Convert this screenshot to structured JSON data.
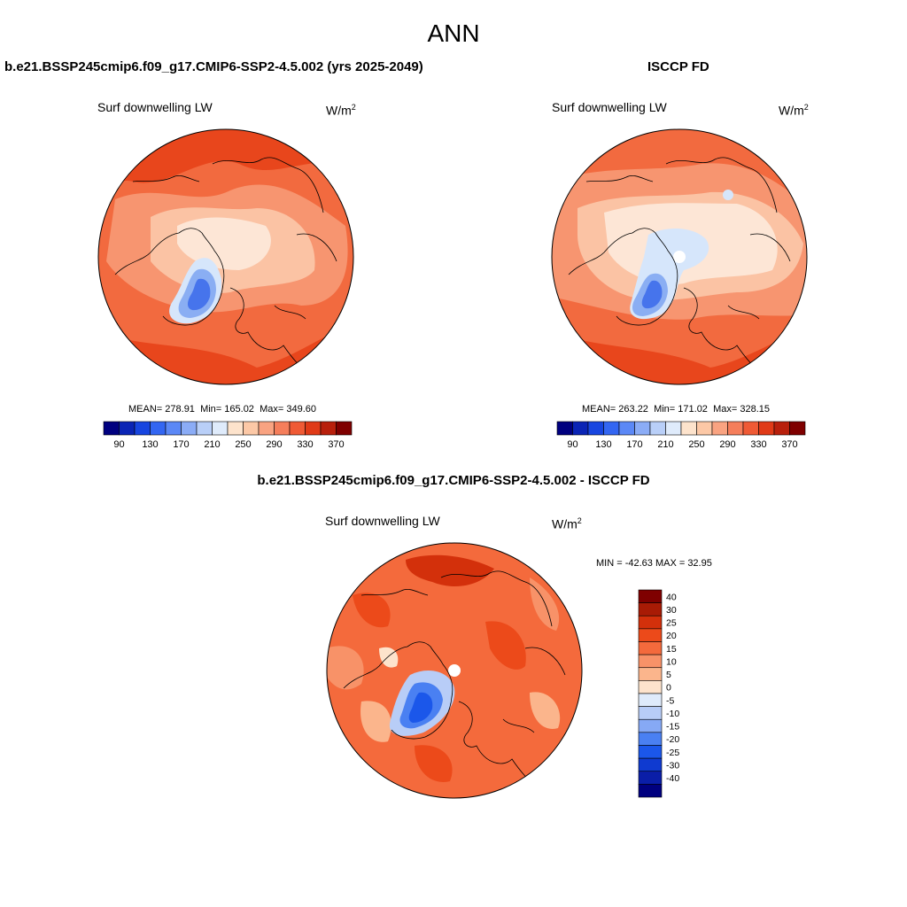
{
  "figure": {
    "title": "ANN",
    "panels": [
      {
        "title": "b.e21.BSSP245cmip6.f09_g17.CMIP6-SSP2-4.5.002 (yrs 2025-2049)",
        "variable": "Surf downwelling LW",
        "units_base": "W/m",
        "units_exp": "2",
        "stats": {
          "mean_label": "MEAN=",
          "mean": "278.91",
          "min_label": "Min=",
          "min": "165.02",
          "max_label": "Max=",
          "max": "349.60"
        }
      },
      {
        "title": "ISCCP FD",
        "variable": "Surf downwelling LW",
        "units_base": "W/m",
        "units_exp": "2",
        "stats": {
          "mean_label": "MEAN=",
          "mean": "263.22",
          "min_label": "Min=",
          "min": "171.02",
          "max_label": "Max=",
          "max": "328.15"
        }
      }
    ],
    "difference": {
      "title": "b.e21.BSSP245cmip6.f09_g17.CMIP6-SSP2-4.5.002 - ISCCP FD",
      "variable": "Surf downwelling LW",
      "units_base": "W/m",
      "units_exp": "2",
      "minmax": "MIN = -42.63 MAX =  32.95"
    }
  },
  "colorbar_abs": {
    "colors": [
      "#00007f",
      "#0a24b5",
      "#1745e0",
      "#3366f2",
      "#5b88f6",
      "#8bacf6",
      "#b9cff8",
      "#dfebfb",
      "#fde3cc",
      "#fcc8a6",
      "#f9a381",
      "#f57e5b",
      "#ef5a35",
      "#e03a17",
      "#b8200c",
      "#7f0000"
    ],
    "ticks": [
      "90",
      "130",
      "170",
      "210",
      "250",
      "290",
      "330",
      "370"
    ]
  },
  "colorbar_diff": {
    "colors": [
      "#00007f",
      "#0a1ea8",
      "#0f3ad0",
      "#1b57ea",
      "#4a80f2",
      "#86a9f5",
      "#b8cdf7",
      "#dfebfb",
      "#fde3cc",
      "#fbb58c",
      "#f89268",
      "#f46a3c",
      "#ec4a1a",
      "#d3300b",
      "#a81b05",
      "#7f0000"
    ],
    "ticks": [
      "40",
      "30",
      "25",
      "20",
      "15",
      "10",
      "5",
      "0",
      "-5",
      "-10",
      "-15",
      "-20",
      "-25",
      "-30",
      "-40"
    ]
  },
  "map_colors": {
    "dark_red": "#e8461c",
    "mid_red": "#f26a3f",
    "orange": "#f79570",
    "peach": "#fbc3a4",
    "light_peach": "#fde6d6",
    "light_blue": "#d6e6fb",
    "mid_blue": "#8aaef3",
    "blue": "#4674ec",
    "dark_blue": "#2a4fd8",
    "coast": "#000000"
  }
}
